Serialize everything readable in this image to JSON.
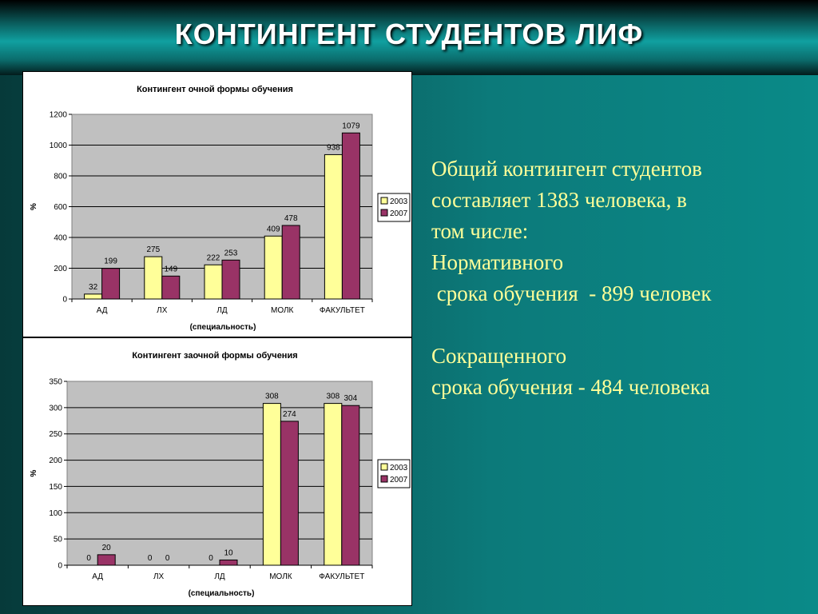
{
  "slide": {
    "title": "КОНТИНГЕНТ СТУДЕНТОВ ЛИФ",
    "info_lines": [
      "Общий контингент студентов",
      "составляет 1383 человека, в",
      "том числе:",
      "Нормативного",
      " срока обучения  - 899 человек",
      "",
      "Сокращенного",
      "срока обучения - 484 человека"
    ]
  },
  "colors": {
    "series_2003": "#ffff99",
    "series_2007": "#993366",
    "plot_bg": "#c0c0c0",
    "text": "#ffff99"
  },
  "chart_data": [
    {
      "type": "bar",
      "title": "Контингент очной формы обучения",
      "xlabel": "(специальность)",
      "ylabel": "%",
      "ylim": [
        0,
        1200
      ],
      "yticks": [
        0,
        200,
        400,
        600,
        800,
        1000,
        1200
      ],
      "categories": [
        "АД",
        "ЛХ",
        "ЛД",
        "МОЛК",
        "ФАКУЛЬТЕТ"
      ],
      "series": [
        {
          "name": "2003",
          "values": [
            32,
            275,
            222,
            409,
            938
          ]
        },
        {
          "name": "2007",
          "values": [
            199,
            149,
            253,
            478,
            1079
          ]
        }
      ],
      "grid": true,
      "legend": "right"
    },
    {
      "type": "bar",
      "title": "Контингент заочной формы обучения",
      "xlabel": "(специальность)",
      "ylabel": "%",
      "ylim": [
        0,
        350
      ],
      "yticks": [
        0,
        50,
        100,
        150,
        200,
        250,
        300,
        350
      ],
      "categories": [
        "АД",
        "ЛХ",
        "ЛД",
        "МОЛК",
        "ФАКУЛЬТЕТ"
      ],
      "series": [
        {
          "name": "2003",
          "values": [
            0,
            0,
            0,
            308,
            308
          ]
        },
        {
          "name": "2007",
          "values": [
            20,
            0,
            10,
            274,
            304
          ]
        }
      ],
      "grid": true,
      "legend": "right"
    }
  ]
}
